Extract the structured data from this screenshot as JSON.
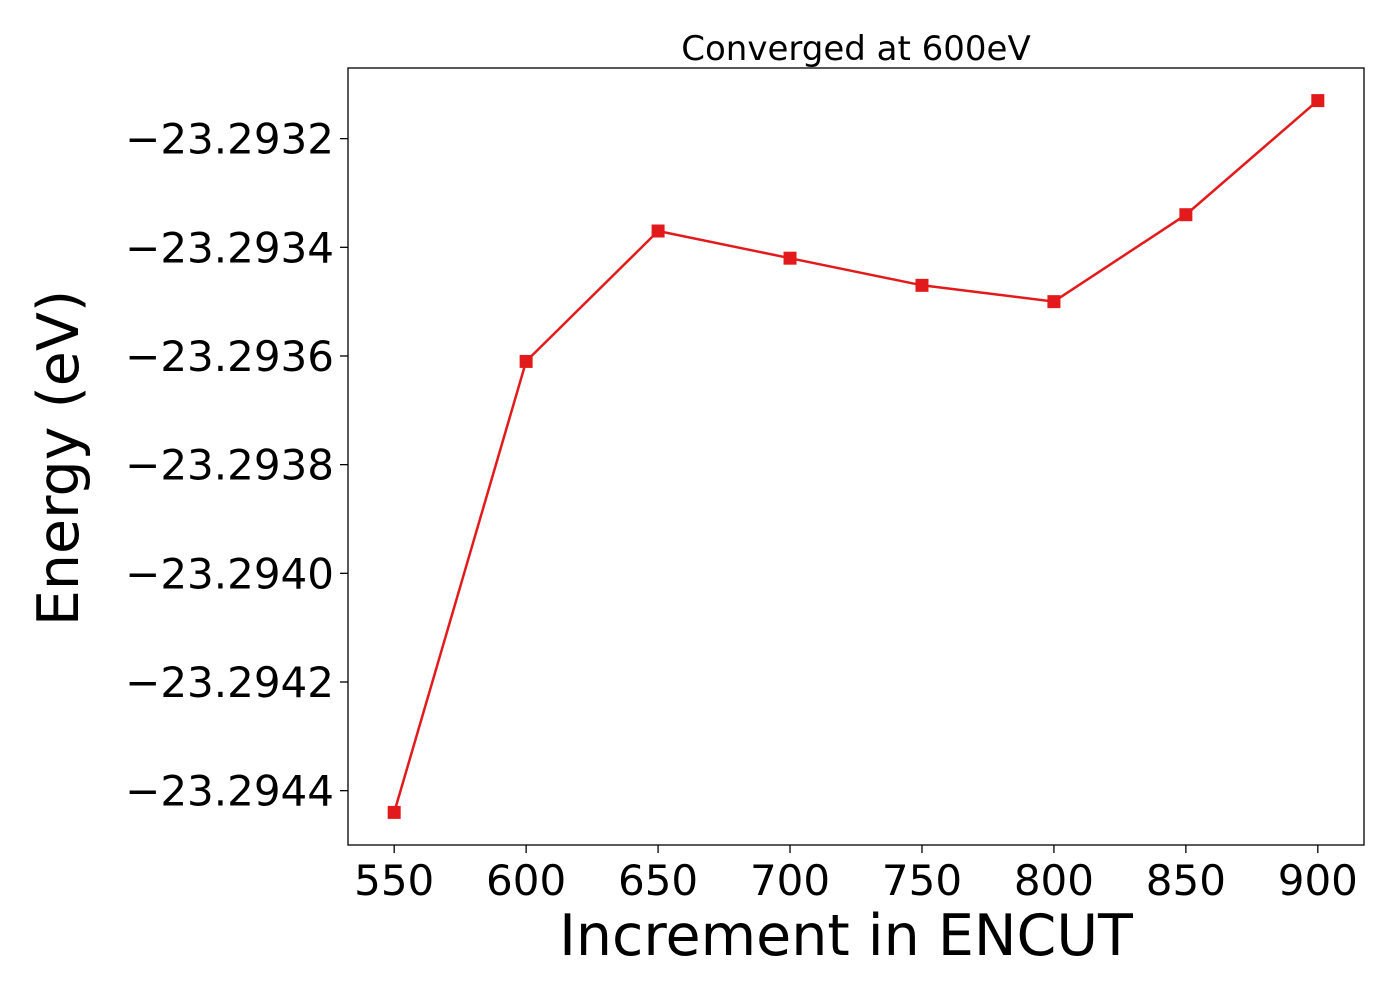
{
  "chart_data": {
    "type": "line",
    "title": "Converged at 600eV",
    "xlabel": "Increment in ENCUT",
    "ylabel": "Energy (eV)",
    "x": [
      550,
      600,
      650,
      700,
      750,
      800,
      850,
      900
    ],
    "series": [
      {
        "values": [
          -23.29444,
          -23.29361,
          -23.29337,
          -23.29342,
          -23.29347,
          -23.2935,
          -23.29334,
          -23.29313
        ],
        "color": "#e31a1c",
        "marker": "square"
      }
    ],
    "xticks": [
      550,
      600,
      650,
      700,
      750,
      800,
      850,
      900
    ],
    "xtick_labels": [
      "550",
      "600",
      "650",
      "700",
      "750",
      "800",
      "850",
      "900"
    ],
    "yticks": [
      -23.2932,
      -23.2934,
      -23.2936,
      -23.2938,
      -23.294,
      -23.2942,
      -23.2944
    ],
    "ytick_labels": [
      "−23.2932",
      "−23.2934",
      "−23.2936",
      "−23.2938",
      "−23.2940",
      "−23.2942",
      "−23.2944"
    ],
    "xlim": [
      532.5,
      917.5
    ],
    "ylim": [
      -23.2945,
      -23.29307
    ],
    "grid": false,
    "legend": false
  }
}
